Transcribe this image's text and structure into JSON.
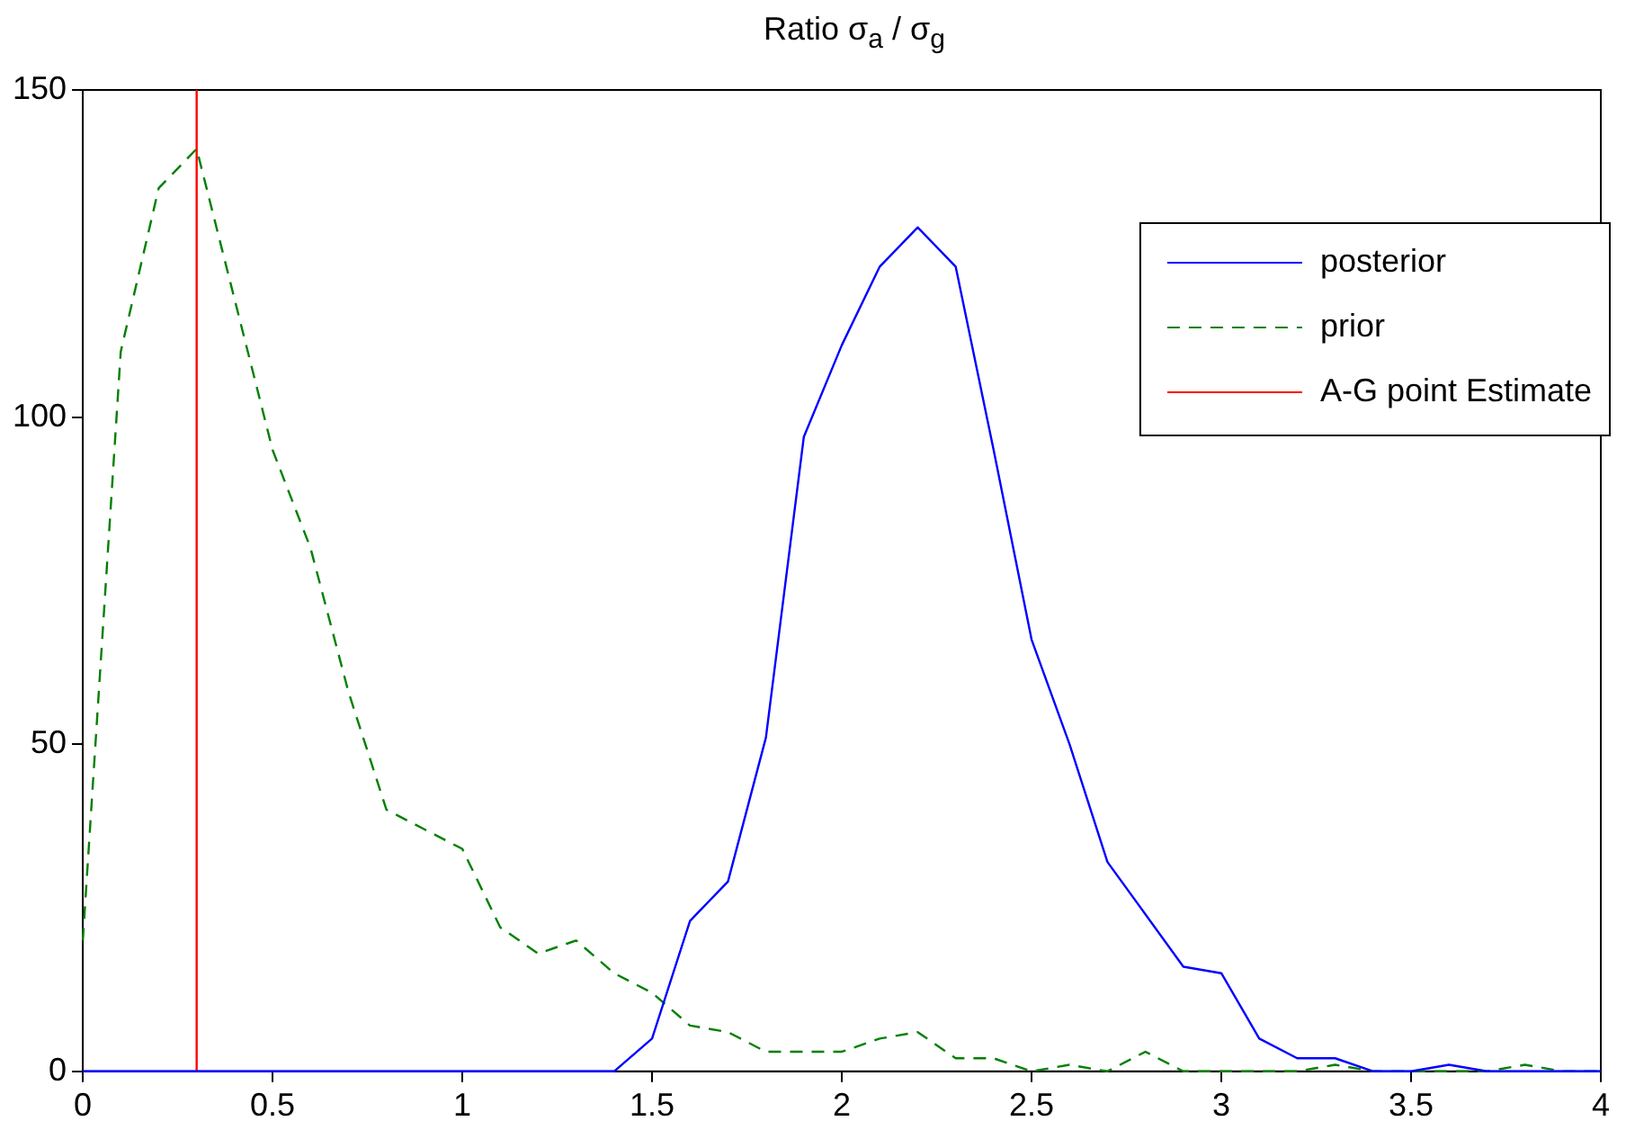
{
  "chart_data": {
    "type": "line",
    "title": "Ratio σ$_{a}$ / σ$_{g}$",
    "x": [
      0,
      0.1,
      0.2,
      0.3,
      0.4,
      0.5,
      0.6,
      0.7,
      0.8,
      0.9,
      1,
      1.1,
      1.2,
      1.3,
      1.4,
      1.5,
      1.6,
      1.7,
      1.8,
      1.9,
      2,
      2.1,
      2.2,
      2.3,
      2.4,
      2.5,
      2.6,
      2.7,
      2.8,
      2.9,
      3,
      3.1,
      3.2,
      3.3,
      3.4,
      3.5,
      3.6,
      3.7,
      3.8,
      3.9,
      4
    ],
    "series": [
      {
        "name": "posterior",
        "color": "#0000ff",
        "line_style": "solid",
        "values": [
          0,
          0,
          0,
          0,
          0,
          0,
          0,
          0,
          0,
          0,
          0,
          0,
          0,
          0,
          0,
          5,
          23,
          29,
          51,
          97,
          111,
          123,
          129,
          123,
          95,
          66,
          50,
          32,
          24,
          16,
          15,
          5,
          2,
          2,
          0,
          0,
          1,
          0,
          0,
          0,
          0
        ]
      },
      {
        "name": "prior",
        "color": "#008000",
        "line_style": "dashed",
        "values": [
          20,
          110,
          135,
          141,
          118,
          95,
          80,
          58,
          40,
          37,
          34,
          22,
          18,
          20,
          15,
          12,
          7,
          6,
          3,
          3,
          3,
          5,
          6,
          2,
          2,
          0,
          1,
          0,
          3,
          0,
          0,
          0,
          0,
          1,
          0,
          0,
          0,
          0,
          1,
          0,
          0
        ]
      },
      {
        "name": "A-G point Estimate",
        "color": "#ff0000",
        "line_style": "solid",
        "x": [
          0.3,
          0.3
        ],
        "values": [
          0,
          150
        ]
      }
    ],
    "xlim": [
      0,
      4
    ],
    "xticks": [
      0,
      0.5,
      1,
      1.5,
      2,
      2.5,
      3,
      3.5,
      4
    ],
    "ylim": [
      0,
      150
    ],
    "yticks": [
      0,
      50,
      100,
      150
    ],
    "grid": false,
    "legend": "top right",
    "marker": "none"
  }
}
